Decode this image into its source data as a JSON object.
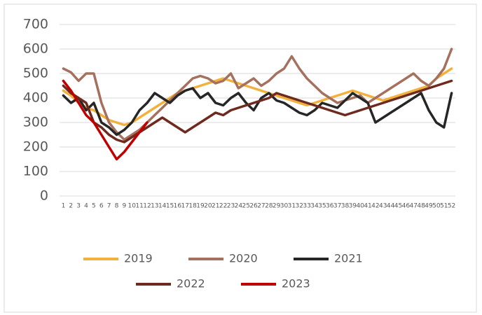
{
  "chart_data": {
    "type": "line",
    "categories": [
      "1",
      "2",
      "3",
      "4",
      "5",
      "6",
      "7",
      "8",
      "9",
      "10",
      "11",
      "12",
      "13",
      "14",
      "15",
      "16",
      "17",
      "18",
      "19",
      "20",
      "21",
      "22",
      "23",
      "24",
      "25",
      "26",
      "27",
      "28",
      "29",
      "30",
      "31",
      "32",
      "33",
      "34",
      "35",
      "36",
      "37",
      "38",
      "39",
      "40",
      "41",
      "42",
      "43",
      "44",
      "45",
      "46",
      "47",
      "48",
      "49",
      "50",
      "51",
      "52"
    ],
    "series": [
      {
        "name": "2019",
        "color": "#f2b13c",
        "values": [
          430,
          410,
          380,
          360,
          350,
          330,
          310,
          300,
          290,
          300,
          320,
          340,
          360,
          380,
          400,
          420,
          430,
          440,
          450,
          460,
          470,
          480,
          470,
          460,
          450,
          440,
          430,
          420,
          410,
          400,
          390,
          380,
          370,
          380,
          390,
          400,
          410,
          420,
          430,
          420,
          410,
          400,
          390,
          400,
          410,
          420,
          430,
          440,
          450,
          480,
          500,
          520
        ]
      },
      {
        "name": "2020",
        "color": "#a5705e",
        "values": [
          520,
          505,
          470,
          500,
          500,
          380,
          300,
          260,
          230,
          250,
          270,
          300,
          330,
          360,
          390,
          420,
          450,
          480,
          490,
          480,
          460,
          470,
          500,
          440,
          460,
          480,
          450,
          470,
          500,
          520,
          570,
          520,
          480,
          450,
          420,
          400,
          380,
          390,
          400,
          410,
          380,
          400,
          420,
          440,
          460,
          480,
          500,
          470,
          450,
          480,
          520,
          600
        ]
      },
      {
        "name": "2021",
        "color": "#262626",
        "values": [
          410,
          380,
          400,
          350,
          380,
          300,
          280,
          250,
          270,
          300,
          350,
          380,
          420,
          400,
          380,
          410,
          430,
          440,
          400,
          420,
          380,
          370,
          400,
          420,
          380,
          350,
          400,
          420,
          390,
          380,
          360,
          340,
          330,
          350,
          380,
          370,
          360,
          390,
          420,
          400,
          380,
          300,
          320,
          340,
          360,
          380,
          400,
          420,
          350,
          300,
          280,
          420
        ]
      },
      {
        "name": "2022",
        "color": "#6e2a1e",
        "values": [
          450,
          420,
          400,
          380,
          300,
          280,
          250,
          230,
          220,
          240,
          260,
          280,
          300,
          320,
          300,
          280,
          260,
          280,
          300,
          320,
          340,
          330,
          350,
          360,
          370,
          380,
          390,
          400,
          420,
          410,
          400,
          390,
          380,
          370,
          360,
          350,
          340,
          330,
          340,
          350,
          360,
          370,
          380,
          390,
          400,
          410,
          420,
          430,
          440,
          450,
          460,
          470
        ]
      },
      {
        "name": "2023",
        "color": "#c00000",
        "values": [
          470,
          430,
          380,
          330,
          300,
          250,
          200,
          150,
          180,
          220,
          260,
          300,
          null,
          null,
          null,
          null,
          null,
          null,
          null,
          null,
          null,
          null,
          null,
          null,
          null,
          null,
          null,
          null,
          null,
          null,
          null,
          null,
          null,
          null,
          null,
          null,
          null,
          null,
          null,
          null,
          null,
          null,
          null,
          null,
          null,
          null,
          null,
          null,
          null,
          null,
          null,
          null
        ]
      }
    ],
    "ylim": [
      0,
      700
    ],
    "yticks": [
      0,
      100,
      200,
      300,
      400,
      500,
      600,
      700
    ],
    "grid": true
  }
}
